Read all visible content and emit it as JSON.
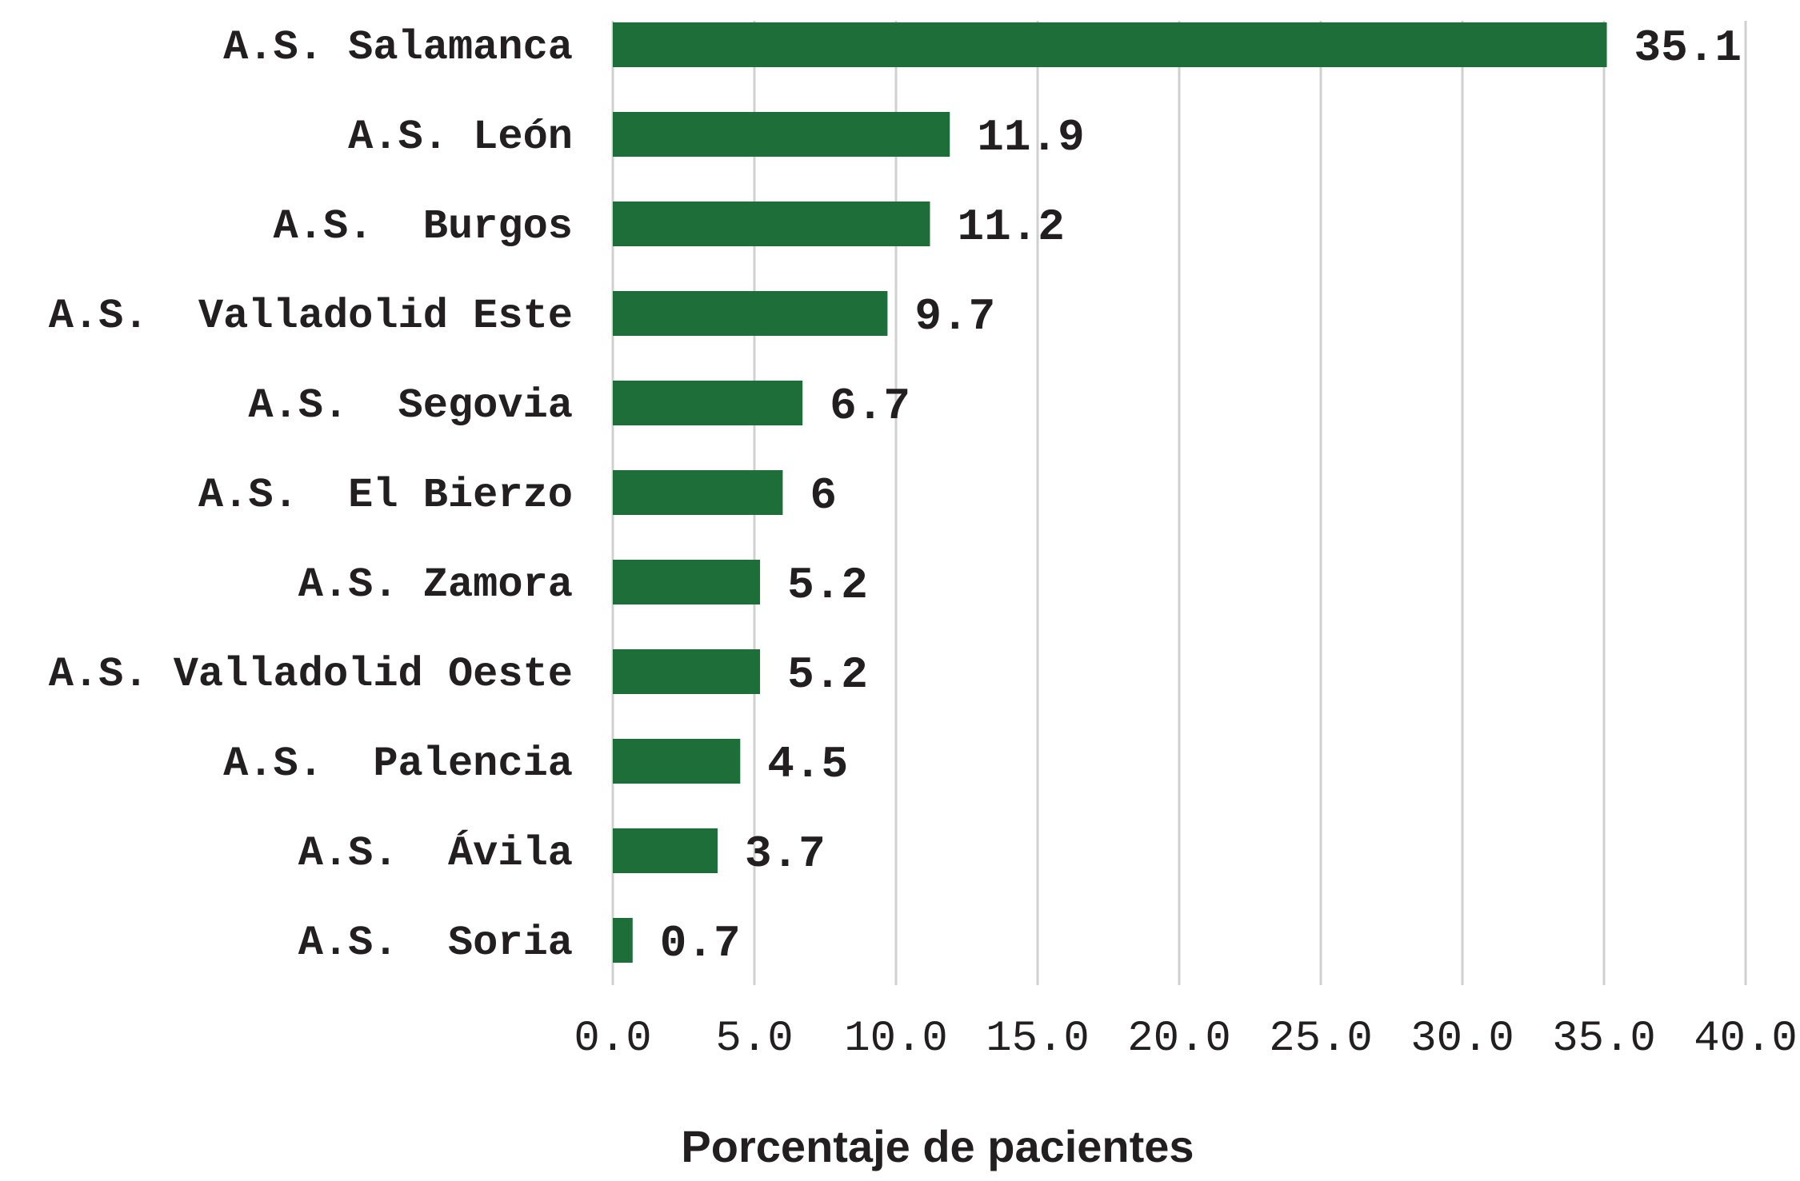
{
  "chart_data": {
    "type": "bar",
    "orientation": "horizontal",
    "categories": [
      "A.S. Salamanca",
      "A.S. León",
      "A.S.  Burgos",
      "A.S.  Valladolid Este",
      "A.S.  Segovia",
      "A.S.  El Bierzo",
      "A.S. Zamora",
      "A.S. Valladolid Oeste",
      "A.S.  Palencia",
      "A.S.  Ávila",
      "A.S.  Soria"
    ],
    "values": [
      35.1,
      11.9,
      11.2,
      9.7,
      6.7,
      6,
      5.2,
      5.2,
      4.5,
      3.7,
      0.7
    ],
    "value_labels": [
      "35.1",
      "11.9",
      "11.2",
      "9.7",
      "6.7",
      "6",
      "5.2",
      "5.2",
      "4.5",
      "3.7",
      "0.7"
    ],
    "xlabel": "Porcentaje de pacientes",
    "ylabel": "",
    "xlim": [
      0,
      40
    ],
    "xticks": [
      0,
      5,
      10,
      15,
      20,
      25,
      30,
      35,
      40
    ],
    "xtick_labels": [
      "0.0",
      "5.0",
      "10.0",
      "15.0",
      "20.0",
      "25.0",
      "30.0",
      "35.0",
      "40.0"
    ],
    "grid": "vertical",
    "legend": "none",
    "colors": {
      "bar": "#1e6e3a",
      "grid": "#d0d0d0",
      "text": "#231f20"
    }
  }
}
